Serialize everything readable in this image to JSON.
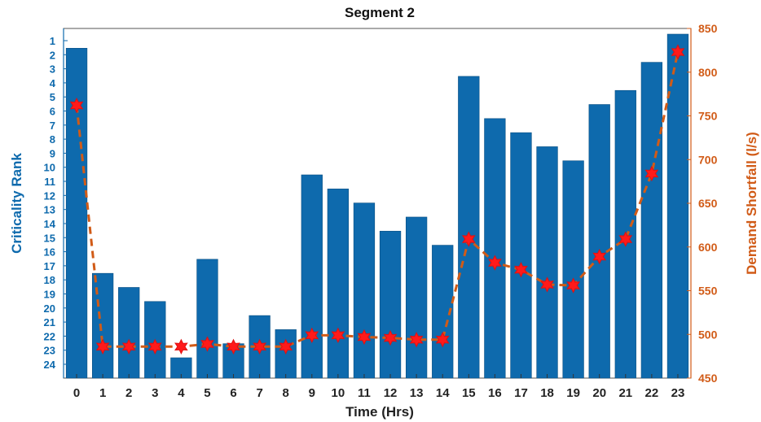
{
  "chart_data": {
    "type": "bar",
    "title": "Segment 2",
    "xlabel": "Time (Hrs)",
    "ylabel_left": "Criticality Rank",
    "ylabel_right": "Demand Shortfall (l/s)",
    "categories": [
      "0",
      "1",
      "2",
      "3",
      "4",
      "5",
      "6",
      "7",
      "8",
      "9",
      "10",
      "11",
      "12",
      "13",
      "14",
      "15",
      "16",
      "17",
      "18",
      "19",
      "20",
      "21",
      "22",
      "23"
    ],
    "left_axis": {
      "reversed": true,
      "ticks": [
        "1",
        "2",
        "3",
        "4",
        "5",
        "6",
        "7",
        "8",
        "9",
        "10",
        "11",
        "12",
        "13",
        "14",
        "15",
        "16",
        "17",
        "18",
        "19",
        "20",
        "21",
        "22",
        "23",
        "24"
      ],
      "ylim": [
        1,
        24
      ]
    },
    "right_axis": {
      "ticks": [
        "450",
        "500",
        "550",
        "600",
        "650",
        "700",
        "750",
        "800",
        "850"
      ],
      "ylim": [
        450,
        850
      ]
    },
    "series": [
      {
        "type": "bar",
        "axis": "left",
        "color": "#0e6aad",
        "values": [
          2,
          18,
          19,
          20,
          24,
          17,
          23,
          21,
          22,
          11,
          12,
          13,
          15,
          14,
          16,
          4,
          7,
          8,
          9,
          10,
          6,
          5,
          3,
          1
        ]
      },
      {
        "type": "line",
        "axis": "right",
        "color": "#d15b17",
        "marker": "red-star",
        "line_style": "dashed",
        "values": [
          762,
          486,
          486,
          486,
          486,
          489,
          486,
          486,
          486,
          499,
          499,
          497,
          496,
          494,
          494,
          609,
          582,
          574,
          557,
          556,
          589,
          609,
          684,
          823
        ]
      }
    ],
    "grid": false,
    "legend": "none"
  }
}
